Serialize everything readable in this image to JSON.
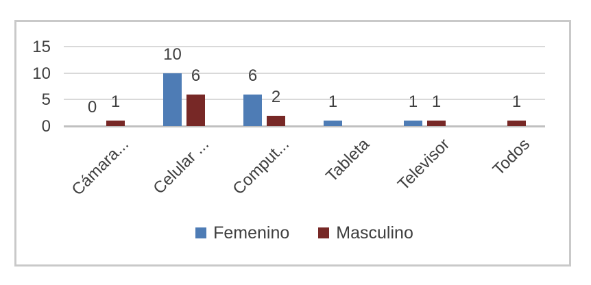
{
  "chart_data": {
    "type": "bar",
    "title": "",
    "xlabel": "",
    "ylabel": "",
    "categories": [
      "Cámara...",
      "Celular ...",
      "Comput...",
      "Tableta",
      "Televisor",
      "Todos"
    ],
    "series": [
      {
        "name": "Femenino",
        "color": "#4e7cb5",
        "values": [
          0,
          10,
          6,
          1,
          1,
          null
        ]
      },
      {
        "name": "Masculino",
        "color": "#772826",
        "values": [
          1,
          6,
          2,
          null,
          1,
          1
        ]
      }
    ],
    "y_ticks": [
      0,
      5,
      10,
      15
    ],
    "ylim": [
      0,
      15
    ],
    "grid": true,
    "data_labels": "outside-end",
    "legend_position": "bottom"
  },
  "style": {
    "text_color": "#404040",
    "legend_text_color": "#3f3f3f",
    "gridline_color": "#d9d9d9",
    "axis_line_color": "#c0c0c0",
    "frame_border_color": "#c9c9c9",
    "background": "#ffffff"
  }
}
